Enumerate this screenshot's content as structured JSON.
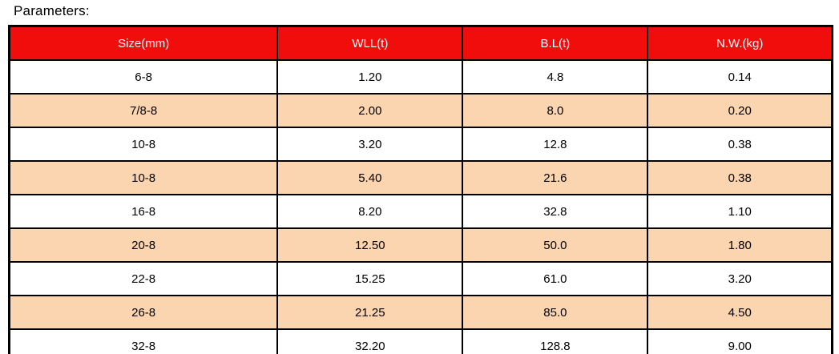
{
  "page": {
    "title": "Parameters:"
  },
  "colors": {
    "header_bg": "#f20d0d",
    "header_text": "#ffffff",
    "row_bg": "#ffffff",
    "row_alt_bg": "#fbd4b0",
    "border": "#000000"
  },
  "chart_data": {
    "type": "table",
    "title": "Parameters",
    "columns": [
      "Size(mm)",
      "WLL(t)",
      "B.L(t)",
      "N.W.(kg)"
    ],
    "rows": [
      [
        "6-8",
        "1.20",
        "4.8",
        "0.14"
      ],
      [
        "7/8-8",
        "2.00",
        "8.0",
        "0.20"
      ],
      [
        "10-8",
        "3.20",
        "12.8",
        "0.38"
      ],
      [
        "10-8",
        "5.40",
        "21.6",
        "0.38"
      ],
      [
        "16-8",
        "8.20",
        "32.8",
        "1.10"
      ],
      [
        "20-8",
        "12.50",
        "50.0",
        "1.80"
      ],
      [
        "22-8",
        "15.25",
        "61.0",
        "3.20"
      ],
      [
        "26-8",
        "21.25",
        "85.0",
        "4.50"
      ],
      [
        "32-8",
        "32.20",
        "128.8",
        "9.00"
      ]
    ]
  }
}
